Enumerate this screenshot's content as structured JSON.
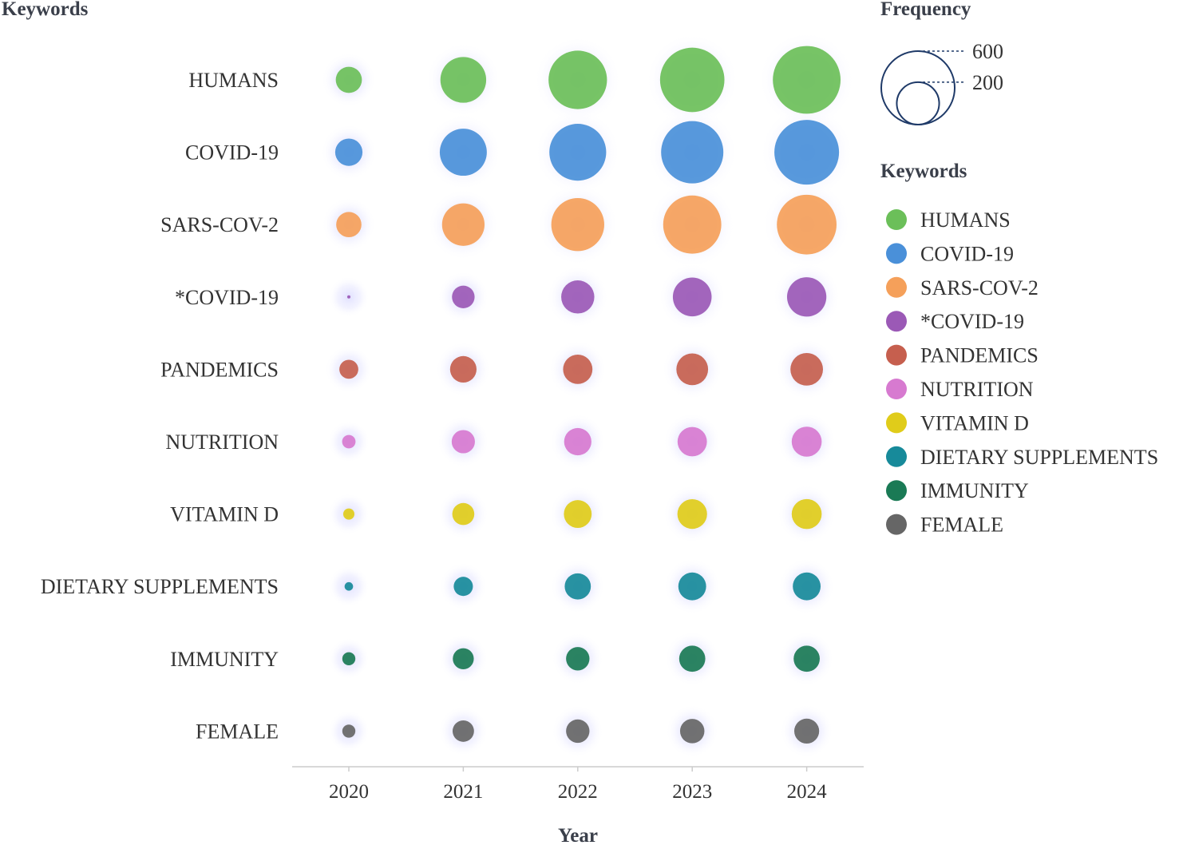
{
  "chart_data": {
    "type": "bubble",
    "ylabel": "Keywords",
    "xlabel": "Year",
    "x": [
      "2020",
      "2021",
      "2022",
      "2023",
      "2024"
    ],
    "size_legend": {
      "title": "Frequency",
      "values": [
        600,
        200
      ],
      "labels": [
        "600",
        "200"
      ]
    },
    "color_legend_title": "Keywords",
    "series": [
      {
        "name": "HUMANS",
        "color": "#6bbf59",
        "values": [
          76,
          233,
          380,
          461,
          510
        ]
      },
      {
        "name": "COVID-19",
        "color": "#4a90d9",
        "values": [
          83,
          246,
          359,
          431,
          465
        ]
      },
      {
        "name": "SARS-COV-2",
        "color": "#f5a05a",
        "values": [
          71,
          201,
          312,
          376,
          396
        ]
      },
      {
        "name": "*COVID-19",
        "color": "#9b59b6",
        "values": [
          1,
          57,
          122,
          167,
          172
        ]
      },
      {
        "name": "PANDEMICS",
        "color": "#c65f4e",
        "values": [
          40,
          78,
          96,
          112,
          118
        ]
      },
      {
        "name": "NUTRITION",
        "color": "#d77ad0",
        "values": [
          20,
          60,
          83,
          96,
          100
        ]
      },
      {
        "name": "VITAMIN D",
        "color": "#e0cc1a",
        "values": [
          14,
          54,
          86,
          98,
          100
        ]
      },
      {
        "name": "DIETARY SUPPLEMENTS",
        "color": "#178a9a",
        "values": [
          8,
          41,
          76,
          86,
          86
        ]
      },
      {
        "name": "IMMUNITY",
        "color": "#1a7a55",
        "values": [
          19,
          49,
          61,
          76,
          76
        ]
      },
      {
        "name": "FEMALE",
        "color": "#666666",
        "values": [
          19,
          51,
          61,
          66,
          69
        ]
      }
    ]
  }
}
